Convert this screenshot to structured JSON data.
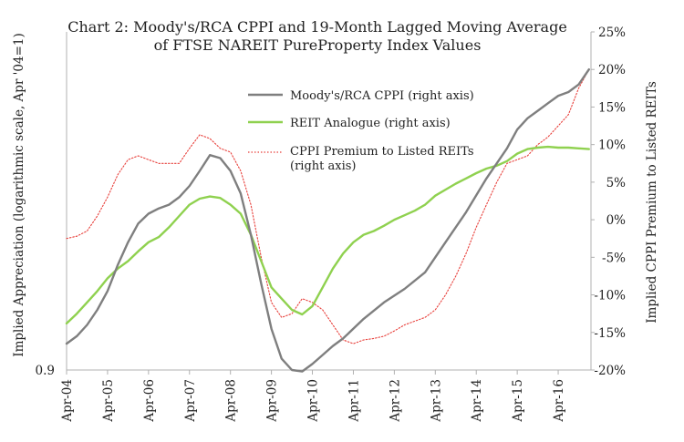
{
  "chart_data": {
    "type": "line",
    "title": [
      "Chart 2: Moody's/RCA CPPI and 19-Month Lagged Moving Average",
      "of FTSE NAREIT PureProperty Index Values"
    ],
    "ylabel_left": "Implied Appreciation (logarithmic scale, Apr '04=1)",
    "ylabel_right": "Implied CPPI Premium to Listed REITs",
    "left_axis": {
      "scale": "log",
      "ticks": [
        "0.9"
      ]
    },
    "right_axis": {
      "ylim": [
        -20,
        25
      ],
      "ticks": [
        "25%",
        "20%",
        "15%",
        "10%",
        "5%",
        "0%",
        "-5%",
        "-10%",
        "-15%",
        "-20%"
      ]
    },
    "x_ticks": [
      "Apr-04",
      "Apr-05",
      "Apr-06",
      "Apr-07",
      "Apr-08",
      "Apr-09",
      "Apr-10",
      "Apr-11",
      "Apr-12",
      "Apr-13",
      "Apr-14",
      "Apr-15",
      "Apr-16"
    ],
    "x_range": [
      2004.25,
      2017.05
    ],
    "legend": [
      {
        "name": "Moody's/RCA CPPI (right axis)",
        "color": "#7f7f7f",
        "style": "solid"
      },
      {
        "name": "REIT Analogue (right axis)",
        "color": "#8fd14f",
        "style": "solid"
      },
      {
        "name": "CPPI Premium to Listed REITs (right axis)",
        "color": "#e8413c",
        "style": "dotted"
      }
    ],
    "series": [
      {
        "name": "Moody's/RCA CPPI (right axis)",
        "color": "#7f7f7f",
        "x": [
          2004.25,
          2004.5,
          2004.75,
          2005.0,
          2005.25,
          2005.5,
          2005.75,
          2006.0,
          2006.25,
          2006.5,
          2006.75,
          2007.0,
          2007.25,
          2007.5,
          2007.75,
          2008.0,
          2008.25,
          2008.5,
          2008.75,
          2009.0,
          2009.25,
          2009.5,
          2009.75,
          2010.0,
          2010.25,
          2010.5,
          2010.75,
          2011.0,
          2011.5,
          2012.0,
          2012.5,
          2013.0,
          2013.5,
          2014.0,
          2014.5,
          2015.0,
          2015.25,
          2015.5,
          2015.75,
          2016.0,
          2016.25,
          2016.5,
          2016.75,
          2017.0
        ],
        "y": [
          -16.5,
          -15.5,
          -14,
          -12,
          -9.5,
          -6,
          -3,
          -0.5,
          0.8,
          1.5,
          2,
          3,
          4.5,
          6.5,
          8.6,
          8.2,
          6.5,
          3.5,
          -2,
          -8.5,
          -14.5,
          -18.5,
          -20,
          -20.2,
          -19.2,
          -18,
          -16.8,
          -15.8,
          -13.2,
          -11,
          -9.2,
          -7,
          -3,
          1,
          5.5,
          9.5,
          12,
          13.5,
          14.5,
          15.5,
          16.5,
          17,
          18,
          20
        ]
      },
      {
        "name": "REIT Analogue (right axis)",
        "color": "#8fd14f",
        "x": [
          2004.25,
          2004.5,
          2004.75,
          2005.0,
          2005.25,
          2005.5,
          2005.75,
          2006.0,
          2006.25,
          2006.5,
          2006.75,
          2007.0,
          2007.25,
          2007.5,
          2007.75,
          2008.0,
          2008.25,
          2008.5,
          2008.75,
          2009.0,
          2009.25,
          2009.5,
          2009.75,
          2010.0,
          2010.25,
          2010.5,
          2010.75,
          2011.0,
          2011.25,
          2011.5,
          2011.75,
          2012.0,
          2012.25,
          2012.5,
          2012.75,
          2013.0,
          2013.25,
          2013.5,
          2013.75,
          2014.0,
          2014.25,
          2014.5,
          2014.75,
          2015.0,
          2015.25,
          2015.5,
          2015.75,
          2016.0,
          2016.25,
          2016.5,
          2016.75,
          2017.0
        ],
        "y": [
          -13.8,
          -12.5,
          -11,
          -9.5,
          -7.8,
          -6.5,
          -5.5,
          -4.2,
          -3,
          -2.3,
          -1,
          0.5,
          2,
          2.8,
          3.1,
          2.9,
          2,
          0.8,
          -2,
          -5.5,
          -9,
          -10.5,
          -12,
          -12.6,
          -11.5,
          -9,
          -6.5,
          -4.5,
          -3,
          -2,
          -1.5,
          -0.8,
          0,
          0.6,
          1.2,
          2,
          3.2,
          4,
          4.8,
          5.5,
          6.2,
          6.8,
          7.2,
          7.8,
          8.8,
          9.4,
          9.6,
          9.7,
          9.6,
          9.6,
          9.5,
          9.4
        ]
      },
      {
        "name": "CPPI Premium to Listed REITs (right axis)",
        "color": "#e8413c",
        "x": [
          2004.25,
          2004.5,
          2004.75,
          2005.0,
          2005.25,
          2005.5,
          2005.75,
          2006.0,
          2006.25,
          2006.5,
          2006.75,
          2007.0,
          2007.25,
          2007.5,
          2007.75,
          2008.0,
          2008.25,
          2008.5,
          2008.75,
          2009.0,
          2009.25,
          2009.5,
          2009.75,
          2010.0,
          2010.25,
          2010.5,
          2010.75,
          2011.0,
          2011.25,
          2011.5,
          2011.75,
          2012.0,
          2012.25,
          2012.5,
          2012.75,
          2013.0,
          2013.25,
          2013.5,
          2013.75,
          2014.0,
          2014.25,
          2014.5,
          2014.75,
          2015.0,
          2015.25,
          2015.5,
          2015.75,
          2016.0,
          2016.25,
          2016.5,
          2016.75,
          2017.0
        ],
        "y": [
          -2.5,
          -2.2,
          -1.5,
          0.5,
          3,
          6,
          8,
          8.5,
          8,
          7.5,
          7.5,
          7.5,
          9.5,
          11.3,
          10.8,
          9.5,
          9,
          6.5,
          2,
          -5,
          -11,
          -13,
          -12.5,
          -10.5,
          -11,
          -12,
          -14,
          -16,
          -16.5,
          -16,
          -15.8,
          -15.5,
          -14.8,
          -14,
          -13.5,
          -13,
          -12,
          -10,
          -7.5,
          -4.5,
          -1,
          2,
          5,
          7.5,
          8,
          8.5,
          10,
          11,
          12.5,
          14,
          17.5,
          20
        ]
      }
    ]
  }
}
